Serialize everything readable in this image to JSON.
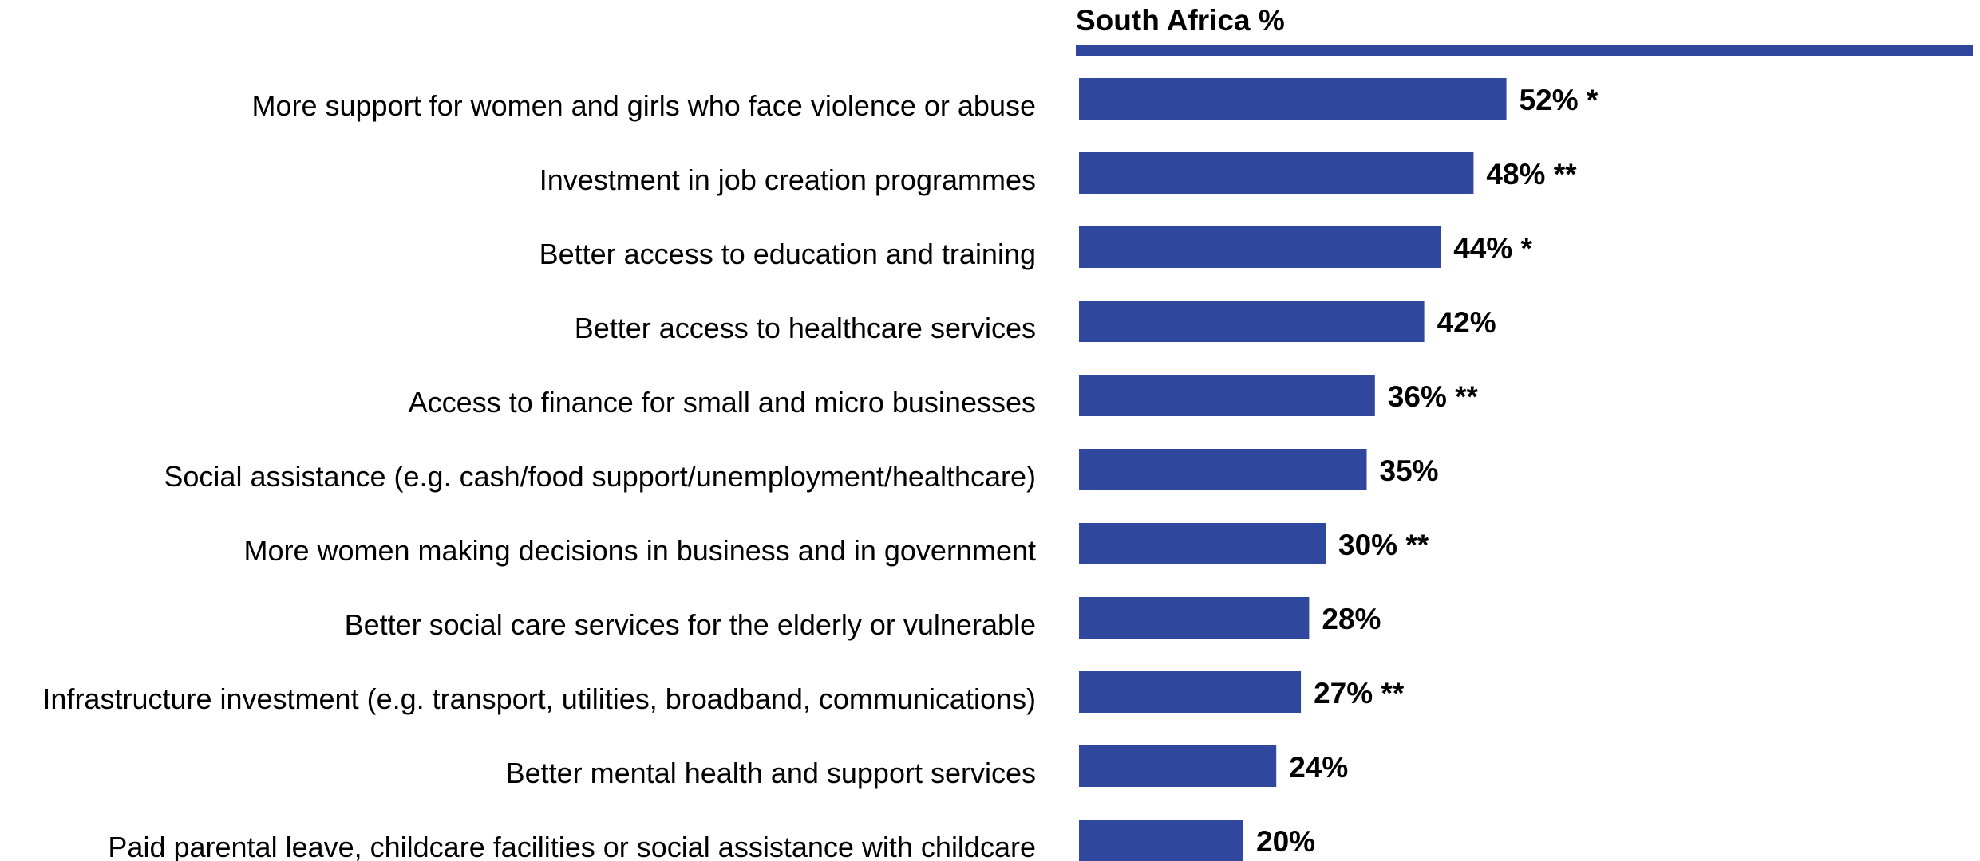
{
  "chart_data": {
    "type": "bar",
    "orientation": "horizontal",
    "title": "South Africa %",
    "colors": {
      "bar": "#30479E",
      "header_rule": "#30479E",
      "text": "#000000"
    },
    "grid": false,
    "legend": "none",
    "xlim": [
      0,
      100
    ],
    "categories": [
      "More support for women and girls who face violence or abuse",
      "Investment in job creation programmes",
      "Better access to education and training",
      "Better access to healthcare services",
      "Access to finance for small and micro businesses",
      "Social assistance (e.g. cash/food support/unemployment/healthcare)",
      "More women making decisions in business and in government",
      "Better social care services for the elderly or vulnerable",
      "Infrastructure investment (e.g. transport, utilities, broadband, communications)",
      "Better mental health and support services",
      "Paid parental leave, childcare facilities or social assistance with childcare"
    ],
    "values": [
      52,
      48,
      44,
      42,
      36,
      35,
      30,
      28,
      27,
      24,
      20
    ],
    "value_labels": [
      "52% *",
      "48% **",
      "44% *",
      "42%",
      "36% **",
      "35%",
      "30% **",
      "28%",
      "27% **",
      "24%",
      "20%"
    ]
  }
}
